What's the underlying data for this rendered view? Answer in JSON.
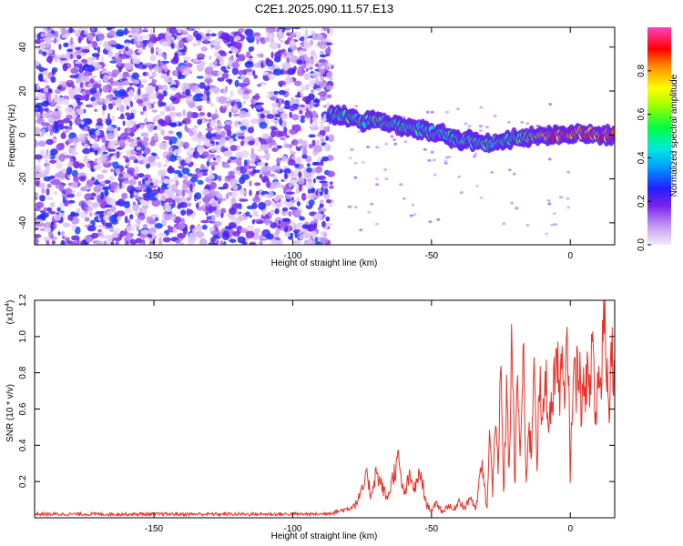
{
  "title": "C2E1.2025.090.11.57.E13",
  "colors": {
    "spectrum_cmap": [
      "#f2e8fb",
      "#c9a3f2",
      "#9b55ee",
      "#6a12d8",
      "#2a2aff",
      "#00c8ff",
      "#00ff80",
      "#a0ff00",
      "#ffff00",
      "#ff9a00",
      "#ff0000",
      "#ff40c0"
    ],
    "snr_line": "#e8332b",
    "axes": "#000000"
  },
  "chart_data": [
    {
      "type": "heatmap",
      "title": "C2E1.2025.090.11.57.E13",
      "xlabel": "Height of straight line (km)",
      "ylabel": "Frequency (Hz)",
      "xlim": [
        -193,
        16
      ],
      "ylim": [
        -50,
        49
      ],
      "xticks": [
        -150,
        -100,
        -50,
        0
      ],
      "xtick_labels": [
        "-150",
        "-100",
        "-50",
        "0"
      ],
      "yticks": [
        -40,
        -20,
        0,
        20,
        40
      ],
      "ytick_labels": [
        "-40",
        "-20",
        "0",
        "20",
        "40"
      ],
      "colorbar": {
        "label": "Normalized spectral amplitude",
        "range": [
          0.0,
          1.0
        ],
        "ticks": [
          0.0,
          0.2,
          0.4,
          0.6,
          0.8
        ],
        "tick_labels": [
          "0.0",
          "0.2",
          "0.4",
          "0.6",
          "0.8"
        ]
      },
      "noise_region": {
        "x_range": [
          -193,
          -86
        ],
        "amplitude_range": [
          0.02,
          0.3
        ]
      },
      "signal_track": {
        "x": [
          -86,
          -80,
          -75,
          -70,
          -65,
          -60,
          -55,
          -50,
          -45,
          -40,
          -35,
          -30,
          -25,
          -20,
          -15,
          -10,
          -5,
          0,
          5,
          10,
          16
        ],
        "freq": [
          10,
          8,
          6,
          7,
          5,
          4,
          3,
          1,
          0,
          -2,
          -3,
          -4,
          -3,
          -2,
          -1,
          -1,
          0,
          1,
          1,
          0,
          0
        ],
        "amplitude": [
          0.5,
          0.55,
          0.5,
          0.55,
          0.5,
          0.5,
          0.5,
          0.45,
          0.45,
          0.5,
          0.55,
          0.5,
          0.5,
          0.5,
          0.55,
          0.7,
          0.8,
          0.8,
          0.85,
          0.9,
          0.9
        ]
      }
    },
    {
      "type": "line",
      "xlabel": "Height of straight line (km)",
      "ylabel": "SNR (10 * v/v)",
      "y_multiplier": "(x10",
      "y_multiplier_exp": "4",
      "y_multiplier_close": ")",
      "xlim": [
        -193,
        16
      ],
      "ylim": [
        0.0,
        1.2
      ],
      "xticks": [
        -150,
        -100,
        -50,
        0
      ],
      "xtick_labels": [
        "-150",
        "-100",
        "-50",
        "0"
      ],
      "yticks": [
        0.2,
        0.4,
        0.6,
        0.8,
        1.0,
        1.2
      ],
      "ytick_labels": [
        "0.2",
        "0.4",
        "0.6",
        "0.8",
        "1.0",
        "1.2"
      ],
      "series": [
        {
          "x": [
            -193,
            -180,
            -160,
            -140,
            -120,
            -100,
            -90,
            -85,
            -80,
            -77,
            -75,
            -73,
            -72,
            -70,
            -68,
            -66,
            -64,
            -62,
            -60,
            -58,
            -56,
            -54,
            -52,
            -50,
            -48,
            -46,
            -44,
            -42,
            -40,
            -38,
            -36,
            -34,
            -32,
            -30,
            -29,
            -28,
            -27,
            -26,
            -25,
            -24,
            -23,
            -22,
            -21,
            -20,
            -19,
            -18,
            -17,
            -16,
            -15,
            -14,
            -13,
            -12,
            -11,
            -10,
            -9,
            -8,
            -7,
            -6,
            -5,
            -4,
            -3,
            -2,
            -1,
            0,
            1,
            2,
            3,
            4,
            5,
            6,
            7,
            8,
            9,
            10,
            11,
            12,
            13,
            14,
            15,
            16
          ],
          "y": [
            0.02,
            0.02,
            0.02,
            0.02,
            0.02,
            0.02,
            0.02,
            0.03,
            0.05,
            0.08,
            0.15,
            0.24,
            0.12,
            0.25,
            0.18,
            0.1,
            0.22,
            0.32,
            0.12,
            0.22,
            0.16,
            0.25,
            0.08,
            0.04,
            0.08,
            0.03,
            0.07,
            0.04,
            0.1,
            0.05,
            0.12,
            0.04,
            0.3,
            0.05,
            0.48,
            0.12,
            0.65,
            0.2,
            0.85,
            0.1,
            0.7,
            0.25,
            1.05,
            0.15,
            0.8,
            0.3,
            0.95,
            0.2,
            0.5,
            0.35,
            0.95,
            0.3,
            0.75,
            0.45,
            0.82,
            0.6,
            0.55,
            0.75,
            0.9,
            0.7,
            0.85,
            0.55,
            1.08,
            0.2,
            0.85,
            0.7,
            0.95,
            0.6,
            0.7,
            0.82,
            0.6,
            1.1,
            0.5,
            0.78,
            0.7,
            1.2,
            0.9,
            0.65,
            0.95,
            0.8
          ]
        }
      ]
    }
  ]
}
